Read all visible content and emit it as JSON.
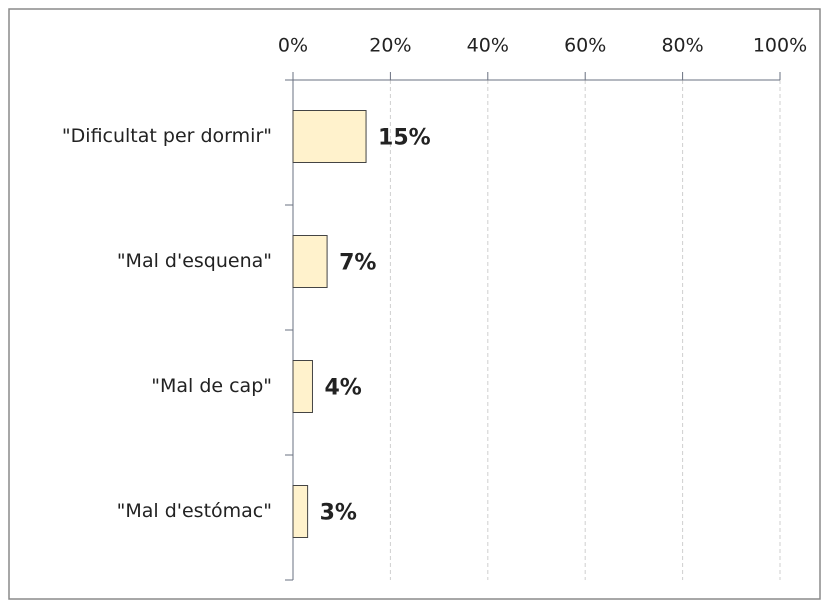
{
  "chart_data": {
    "type": "bar",
    "orientation": "horizontal",
    "categories": [
      "\"Dificultat per dormir\"",
      "\"Mal d'esquena\"",
      "\"Mal de cap\"",
      "\"Mal d'estómac\""
    ],
    "values": [
      15,
      7,
      4,
      3
    ],
    "value_labels": [
      "15%",
      "7%",
      "4%",
      "3%"
    ],
    "color": "#fff2cc",
    "xlim": [
      0,
      100
    ],
    "xticks": [
      {
        "value": 0,
        "label": "0%"
      },
      {
        "value": 20,
        "label": "20%"
      },
      {
        "value": 40,
        "label": "40%"
      },
      {
        "value": 60,
        "label": "60%"
      },
      {
        "value": 80,
        "label": "80%"
      },
      {
        "value": 100,
        "label": "100%"
      }
    ],
    "grid": true
  }
}
